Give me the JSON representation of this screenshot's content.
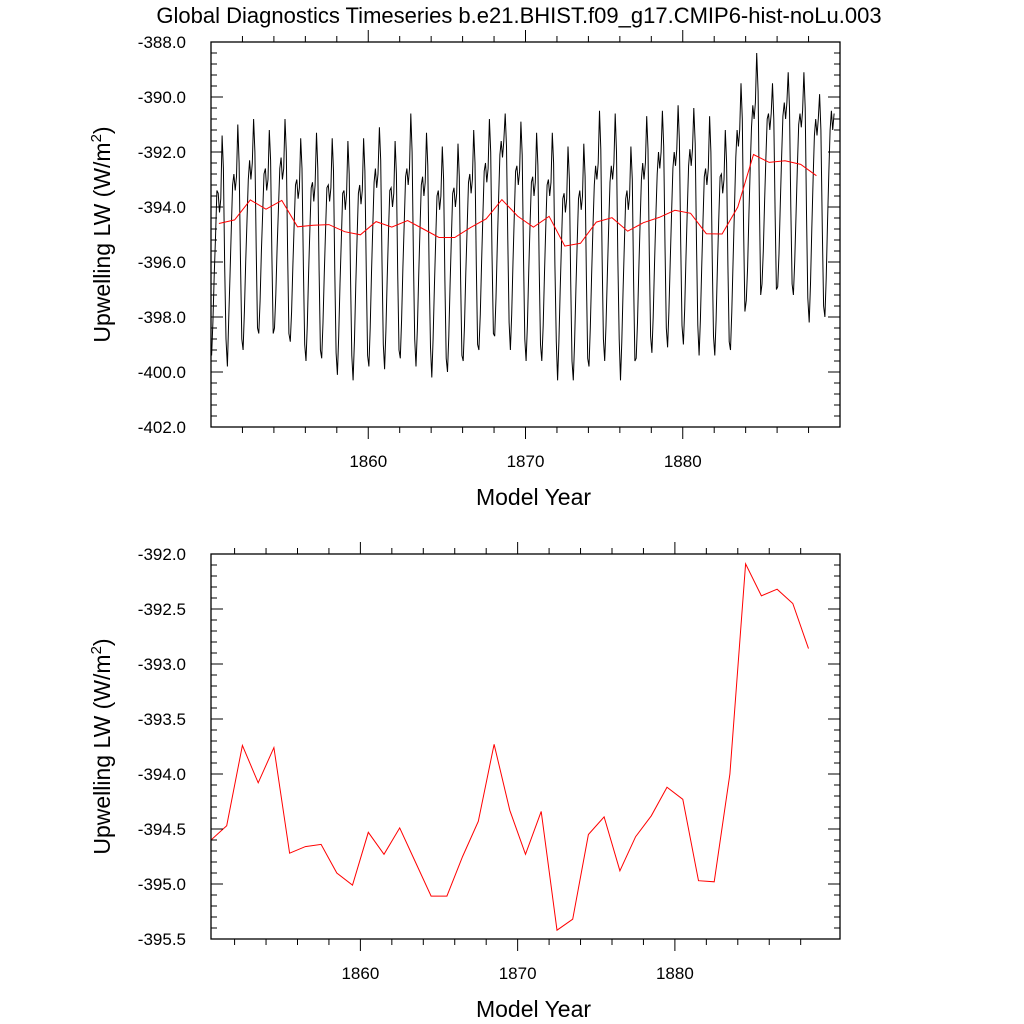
{
  "figure": {
    "title": "Global Diagnostics Timeseries b.e21.BHIST.f09_g17.CMIP6-hist-noLu.003"
  },
  "chart_data": [
    {
      "type": "line",
      "xlabel": "Model Year",
      "ylabel_main": "Upwelling LW (W/m",
      "ylabel_sup": "2",
      "ylabel_close": ")",
      "xlim": [
        1850,
        1890
      ],
      "ylim": [
        -402,
        -388
      ],
      "xticks": [
        1860,
        1870,
        1880
      ],
      "xtick_labels": [
        "1860",
        "1870",
        "1880"
      ],
      "yticks": [
        -402,
        -400,
        -398,
        -396,
        -394,
        -392,
        -390,
        -388
      ],
      "ytick_labels": [
        "-402.0",
        "-400.0",
        "-398.0",
        "-396.0",
        "-394.0",
        "-392.0",
        "-390.0",
        "-388.0"
      ],
      "series": [
        {
          "kind": "monthly",
          "color": "#000000",
          "start": 1850.04,
          "step": 0.08333,
          "values": [
            -399.4,
            -398.2,
            -396.5,
            -395.0,
            -393.4,
            -393.5,
            -394.2,
            -393.7,
            -391.4,
            -392.6,
            -396.2,
            -398.8,
            -399.8,
            -398.1,
            -396.5,
            -394.8,
            -393.2,
            -392.8,
            -393.4,
            -392.9,
            -391.0,
            -392.4,
            -396.0,
            -398.8,
            -399.2,
            -397.8,
            -396.0,
            -394.5,
            -393.0,
            -392.3,
            -393.0,
            -392.4,
            -390.8,
            -392.0,
            -395.5,
            -398.4,
            -398.6,
            -397.4,
            -395.6,
            -394.2,
            -392.8,
            -392.6,
            -393.4,
            -393.0,
            -391.2,
            -392.3,
            -395.8,
            -398.6,
            -398.4,
            -397.2,
            -395.5,
            -394.0,
            -392.6,
            -392.2,
            -393.0,
            -392.6,
            -390.8,
            -392.0,
            -395.6,
            -398.6,
            -398.9,
            -397.8,
            -396.1,
            -394.6,
            -393.2,
            -393.0,
            -393.7,
            -393.3,
            -391.5,
            -392.6,
            -396.2,
            -399.0,
            -399.6,
            -398.3,
            -396.4,
            -394.8,
            -393.3,
            -393.1,
            -393.8,
            -393.2,
            -391.3,
            -392.6,
            -396.3,
            -399.2,
            -399.5,
            -398.2,
            -396.4,
            -394.8,
            -393.3,
            -393.2,
            -393.8,
            -393.3,
            -391.5,
            -392.7,
            -396.4,
            -399.3,
            -400.1,
            -398.7,
            -396.8,
            -395.1,
            -393.5,
            -393.4,
            -394.1,
            -393.5,
            -391.6,
            -392.8,
            -396.5,
            -399.4,
            -400.3,
            -398.8,
            -396.8,
            -395.1,
            -393.5,
            -393.2,
            -393.9,
            -393.4,
            -391.5,
            -392.7,
            -396.4,
            -399.4,
            -399.8,
            -398.4,
            -396.4,
            -394.7,
            -393.1,
            -392.6,
            -393.3,
            -392.8,
            -391.1,
            -392.3,
            -396.0,
            -399.0,
            -399.9,
            -398.5,
            -396.6,
            -394.9,
            -393.4,
            -393.3,
            -394.0,
            -393.5,
            -391.6,
            -392.8,
            -396.4,
            -399.2,
            -399.5,
            -398.1,
            -396.2,
            -394.5,
            -392.9,
            -392.6,
            -393.2,
            -392.6,
            -390.6,
            -392.0,
            -395.8,
            -398.8,
            -399.8,
            -398.4,
            -396.5,
            -394.8,
            -393.2,
            -392.9,
            -393.6,
            -393.1,
            -391.3,
            -392.5,
            -396.2,
            -399.1,
            -400.2,
            -398.8,
            -396.9,
            -395.2,
            -393.6,
            -393.4,
            -394.1,
            -393.6,
            -391.8,
            -393.0,
            -396.7,
            -399.5,
            -400.0,
            -398.7,
            -396.8,
            -395.1,
            -393.5,
            -393.3,
            -394.0,
            -393.5,
            -391.7,
            -392.9,
            -396.6,
            -399.4,
            -399.6,
            -398.3,
            -396.4,
            -394.7,
            -393.1,
            -392.8,
            -393.5,
            -393.0,
            -391.2,
            -392.4,
            -396.1,
            -399.0,
            -399.2,
            -397.9,
            -396.0,
            -394.3,
            -392.7,
            -392.4,
            -393.1,
            -392.6,
            -390.8,
            -392.0,
            -395.7,
            -398.6,
            -398.7,
            -397.3,
            -395.4,
            -393.7,
            -392.1,
            -391.6,
            -392.2,
            -391.6,
            -390.6,
            -391.8,
            -395.2,
            -398.2,
            -399.2,
            -397.9,
            -396.0,
            -394.3,
            -392.7,
            -392.5,
            -393.2,
            -392.7,
            -390.9,
            -392.1,
            -395.8,
            -398.8,
            -399.6,
            -398.3,
            -396.4,
            -394.7,
            -393.1,
            -392.9,
            -393.6,
            -393.1,
            -391.3,
            -392.5,
            -396.2,
            -399.0,
            -399.6,
            -398.3,
            -396.4,
            -394.7,
            -393.2,
            -393.0,
            -393.6,
            -393.1,
            -391.3,
            -392.4,
            -396.1,
            -398.9,
            -400.3,
            -398.9,
            -397.0,
            -395.3,
            -393.7,
            -393.5,
            -394.2,
            -393.7,
            -391.8,
            -393.0,
            -396.7,
            -399.6,
            -400.3,
            -398.9,
            -397.0,
            -395.3,
            -393.7,
            -393.4,
            -394.1,
            -393.6,
            -391.7,
            -392.9,
            -396.6,
            -399.5,
            -399.8,
            -398.4,
            -396.5,
            -394.8,
            -393.2,
            -392.5,
            -393.0,
            -392.4,
            -390.5,
            -391.9,
            -395.8,
            -398.8,
            -399.6,
            -398.3,
            -396.4,
            -394.7,
            -393.1,
            -392.5,
            -393.0,
            -392.4,
            -390.6,
            -392.0,
            -395.8,
            -398.8,
            -400.3,
            -398.9,
            -397.0,
            -395.3,
            -393.7,
            -393.4,
            -394.1,
            -393.6,
            -391.8,
            -393.0,
            -396.7,
            -399.6,
            -399.5,
            -398.2,
            -396.3,
            -394.6,
            -393.0,
            -392.4,
            -393.0,
            -392.4,
            -390.7,
            -391.9,
            -395.7,
            -398.7,
            -399.3,
            -398.0,
            -396.1,
            -394.4,
            -392.8,
            -392.0,
            -392.6,
            -392.0,
            -390.5,
            -391.8,
            -395.4,
            -398.4,
            -399.1,
            -397.8,
            -395.9,
            -394.2,
            -392.6,
            -392.0,
            -392.5,
            -391.9,
            -390.3,
            -391.6,
            -395.3,
            -398.3,
            -399.0,
            -397.7,
            -395.8,
            -394.1,
            -392.5,
            -391.9,
            -392.5,
            -391.9,
            -390.4,
            -391.7,
            -395.3,
            -398.3,
            -399.4,
            -398.1,
            -396.2,
            -394.5,
            -392.9,
            -392.6,
            -393.2,
            -392.6,
            -390.7,
            -392.0,
            -395.8,
            -398.7,
            -399.4,
            -398.1,
            -396.2,
            -394.5,
            -392.9,
            -392.8,
            -393.5,
            -393.0,
            -391.2,
            -392.4,
            -396.1,
            -398.9,
            -399.2,
            -397.8,
            -395.8,
            -394.0,
            -392.2,
            -391.2,
            -391.8,
            -391.2,
            -389.5,
            -390.8,
            -394.8,
            -397.8,
            -397.4,
            -396.2,
            -394.3,
            -392.6,
            -391.1,
            -390.3,
            -390.8,
            -390.2,
            -388.4,
            -389.8,
            -393.8,
            -397.2,
            -396.8,
            -395.6,
            -393.8,
            -392.2,
            -390.8,
            -390.6,
            -391.2,
            -390.6,
            -389.5,
            -390.8,
            -394.2,
            -397.0,
            -396.9,
            -395.7,
            -393.9,
            -392.2,
            -390.7,
            -390.2,
            -390.8,
            -390.2,
            -389.1,
            -390.4,
            -394.0,
            -396.8,
            -397.2,
            -396.0,
            -394.2,
            -392.5,
            -391.0,
            -390.6,
            -391.1,
            -390.5,
            -389.1,
            -390.4,
            -394.2,
            -397.3,
            -398.2,
            -396.8,
            -394.8,
            -393.0,
            -391.4,
            -390.8,
            -391.4,
            -390.8,
            -389.9,
            -391.2,
            -394.8,
            -397.6,
            -398.0,
            -396.6,
            -394.6,
            -392.8,
            -391.2,
            -390.5,
            -391.2,
            -390.6
          ]
        },
        {
          "kind": "annual",
          "color": "#ff0000",
          "x": [
            1850.5,
            1851.5,
            1852.5,
            1853.5,
            1854.5,
            1855.5,
            1856.5,
            1857.5,
            1858.5,
            1859.5,
            1860.5,
            1861.5,
            1862.5,
            1863.5,
            1864.5,
            1865.5,
            1866.5,
            1867.5,
            1868.5,
            1869.5,
            1870.5,
            1871.5,
            1872.5,
            1873.5,
            1874.5,
            1875.5,
            1876.5,
            1877.5,
            1878.5,
            1879.5,
            1880.5,
            1881.5,
            1882.5,
            1883.5,
            1884.5,
            1885.5,
            1886.5,
            1887.5,
            1888.5
          ],
          "values": [
            -394.6,
            -394.47,
            -393.74,
            -394.08,
            -393.76,
            -394.72,
            -394.66,
            -394.64,
            -394.9,
            -395.01,
            -394.53,
            -394.73,
            -394.49,
            -394.8,
            -395.11,
            -395.11,
            -394.75,
            -394.43,
            -393.73,
            -394.33,
            -394.73,
            -394.34,
            -395.42,
            -395.32,
            -394.55,
            -394.39,
            -394.88,
            -394.57,
            -394.38,
            -394.12,
            -394.23,
            -394.97,
            -394.98,
            -394.0,
            -392.09,
            -392.38,
            -392.32,
            -392.45,
            -392.86
          ]
        }
      ]
    },
    {
      "type": "line",
      "xlabel": "Model Year",
      "ylabel_main": "Upwelling LW (W/m",
      "ylabel_sup": "2",
      "ylabel_close": ")",
      "xlim": [
        1850.5,
        1890.5
      ],
      "ylim": [
        -395.5,
        -392.0
      ],
      "xticks": [
        1860,
        1870,
        1880
      ],
      "xtick_labels": [
        "1860",
        "1870",
        "1880"
      ],
      "yticks": [
        -395.5,
        -395.0,
        -394.5,
        -394.0,
        -393.5,
        -393.0,
        -392.5,
        -392.0
      ],
      "ytick_labels": [
        "-395.5",
        "-395.0",
        "-394.5",
        "-394.0",
        "-393.5",
        "-393.0",
        "-392.5",
        "-392.0"
      ],
      "series": [
        {
          "kind": "annual",
          "color": "#ff0000",
          "x": [
            1850.5,
            1851.5,
            1852.5,
            1853.5,
            1854.5,
            1855.5,
            1856.5,
            1857.5,
            1858.5,
            1859.5,
            1860.5,
            1861.5,
            1862.5,
            1863.5,
            1864.5,
            1865.5,
            1866.5,
            1867.5,
            1868.5,
            1869.5,
            1870.5,
            1871.5,
            1872.5,
            1873.5,
            1874.5,
            1875.5,
            1876.5,
            1877.5,
            1878.5,
            1879.5,
            1880.5,
            1881.5,
            1882.5,
            1883.5,
            1884.5,
            1885.5,
            1886.5,
            1887.5,
            1888.5
          ],
          "values": [
            -394.6,
            -394.47,
            -393.74,
            -394.08,
            -393.76,
            -394.72,
            -394.66,
            -394.64,
            -394.9,
            -395.01,
            -394.53,
            -394.73,
            -394.49,
            -394.8,
            -395.11,
            -395.11,
            -394.75,
            -394.43,
            -393.73,
            -394.33,
            -394.73,
            -394.34,
            -395.42,
            -395.32,
            -394.55,
            -394.39,
            -394.88,
            -394.57,
            -394.38,
            -394.12,
            -394.23,
            -394.97,
            -394.98,
            -394.0,
            -392.09,
            -392.38,
            -392.32,
            -392.45,
            -392.86
          ]
        }
      ]
    }
  ]
}
